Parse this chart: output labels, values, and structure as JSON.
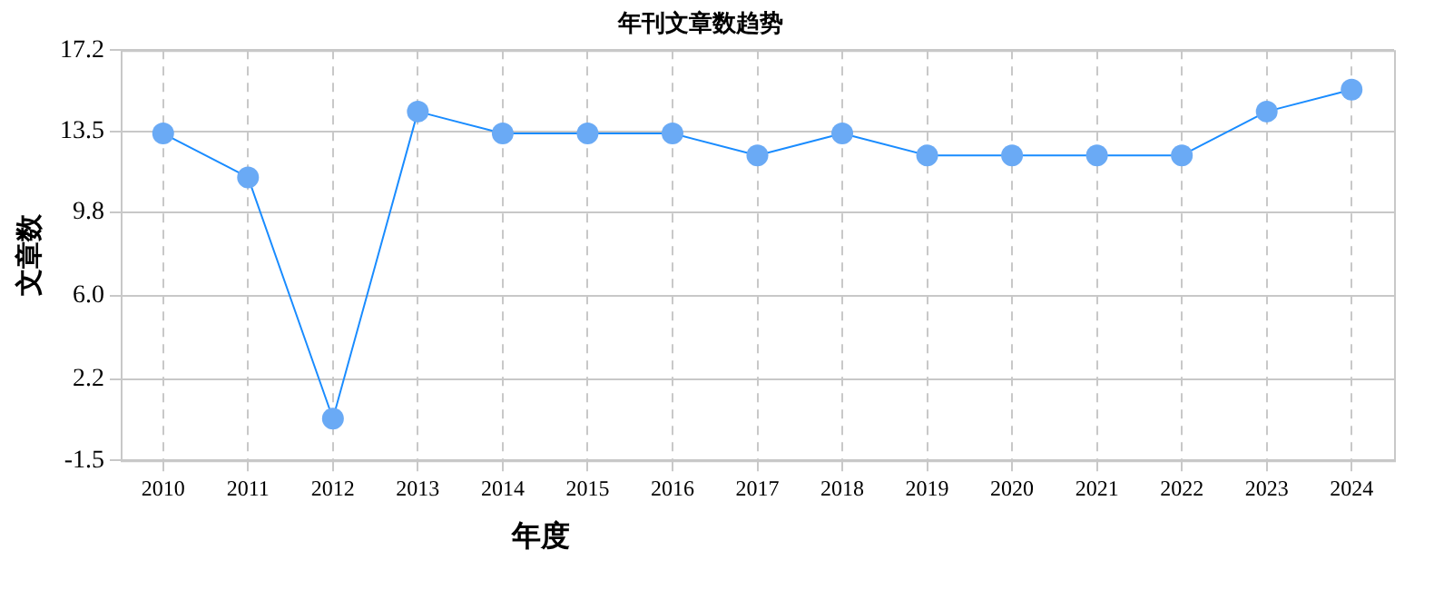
{
  "chart_data": {
    "type": "line",
    "title": "年刊文章数趋势",
    "xlabel": "年度",
    "ylabel": "文章数",
    "categories": [
      "2010",
      "2011",
      "2012",
      "2013",
      "2014",
      "2015",
      "2016",
      "2017",
      "2018",
      "2019",
      "2020",
      "2021",
      "2022",
      "2023",
      "2024"
    ],
    "series": [
      {
        "color": "#1a8cff",
        "values": [
          13.4,
          11.4,
          0.4,
          14.4,
          13.4,
          13.4,
          13.4,
          12.4,
          13.4,
          12.4,
          12.4,
          12.4,
          12.4,
          14.4,
          15.4
        ]
      }
    ],
    "ylim": [
      -1.5,
      17.2
    ],
    "yticks": [
      -1.5,
      2.2,
      {
        "value": 6.0,
        "label": "6.0"
      },
      9.8,
      13.5,
      17.2
    ],
    "grid": true,
    "legend": false,
    "marker": "circle",
    "line_style": "solid"
  }
}
